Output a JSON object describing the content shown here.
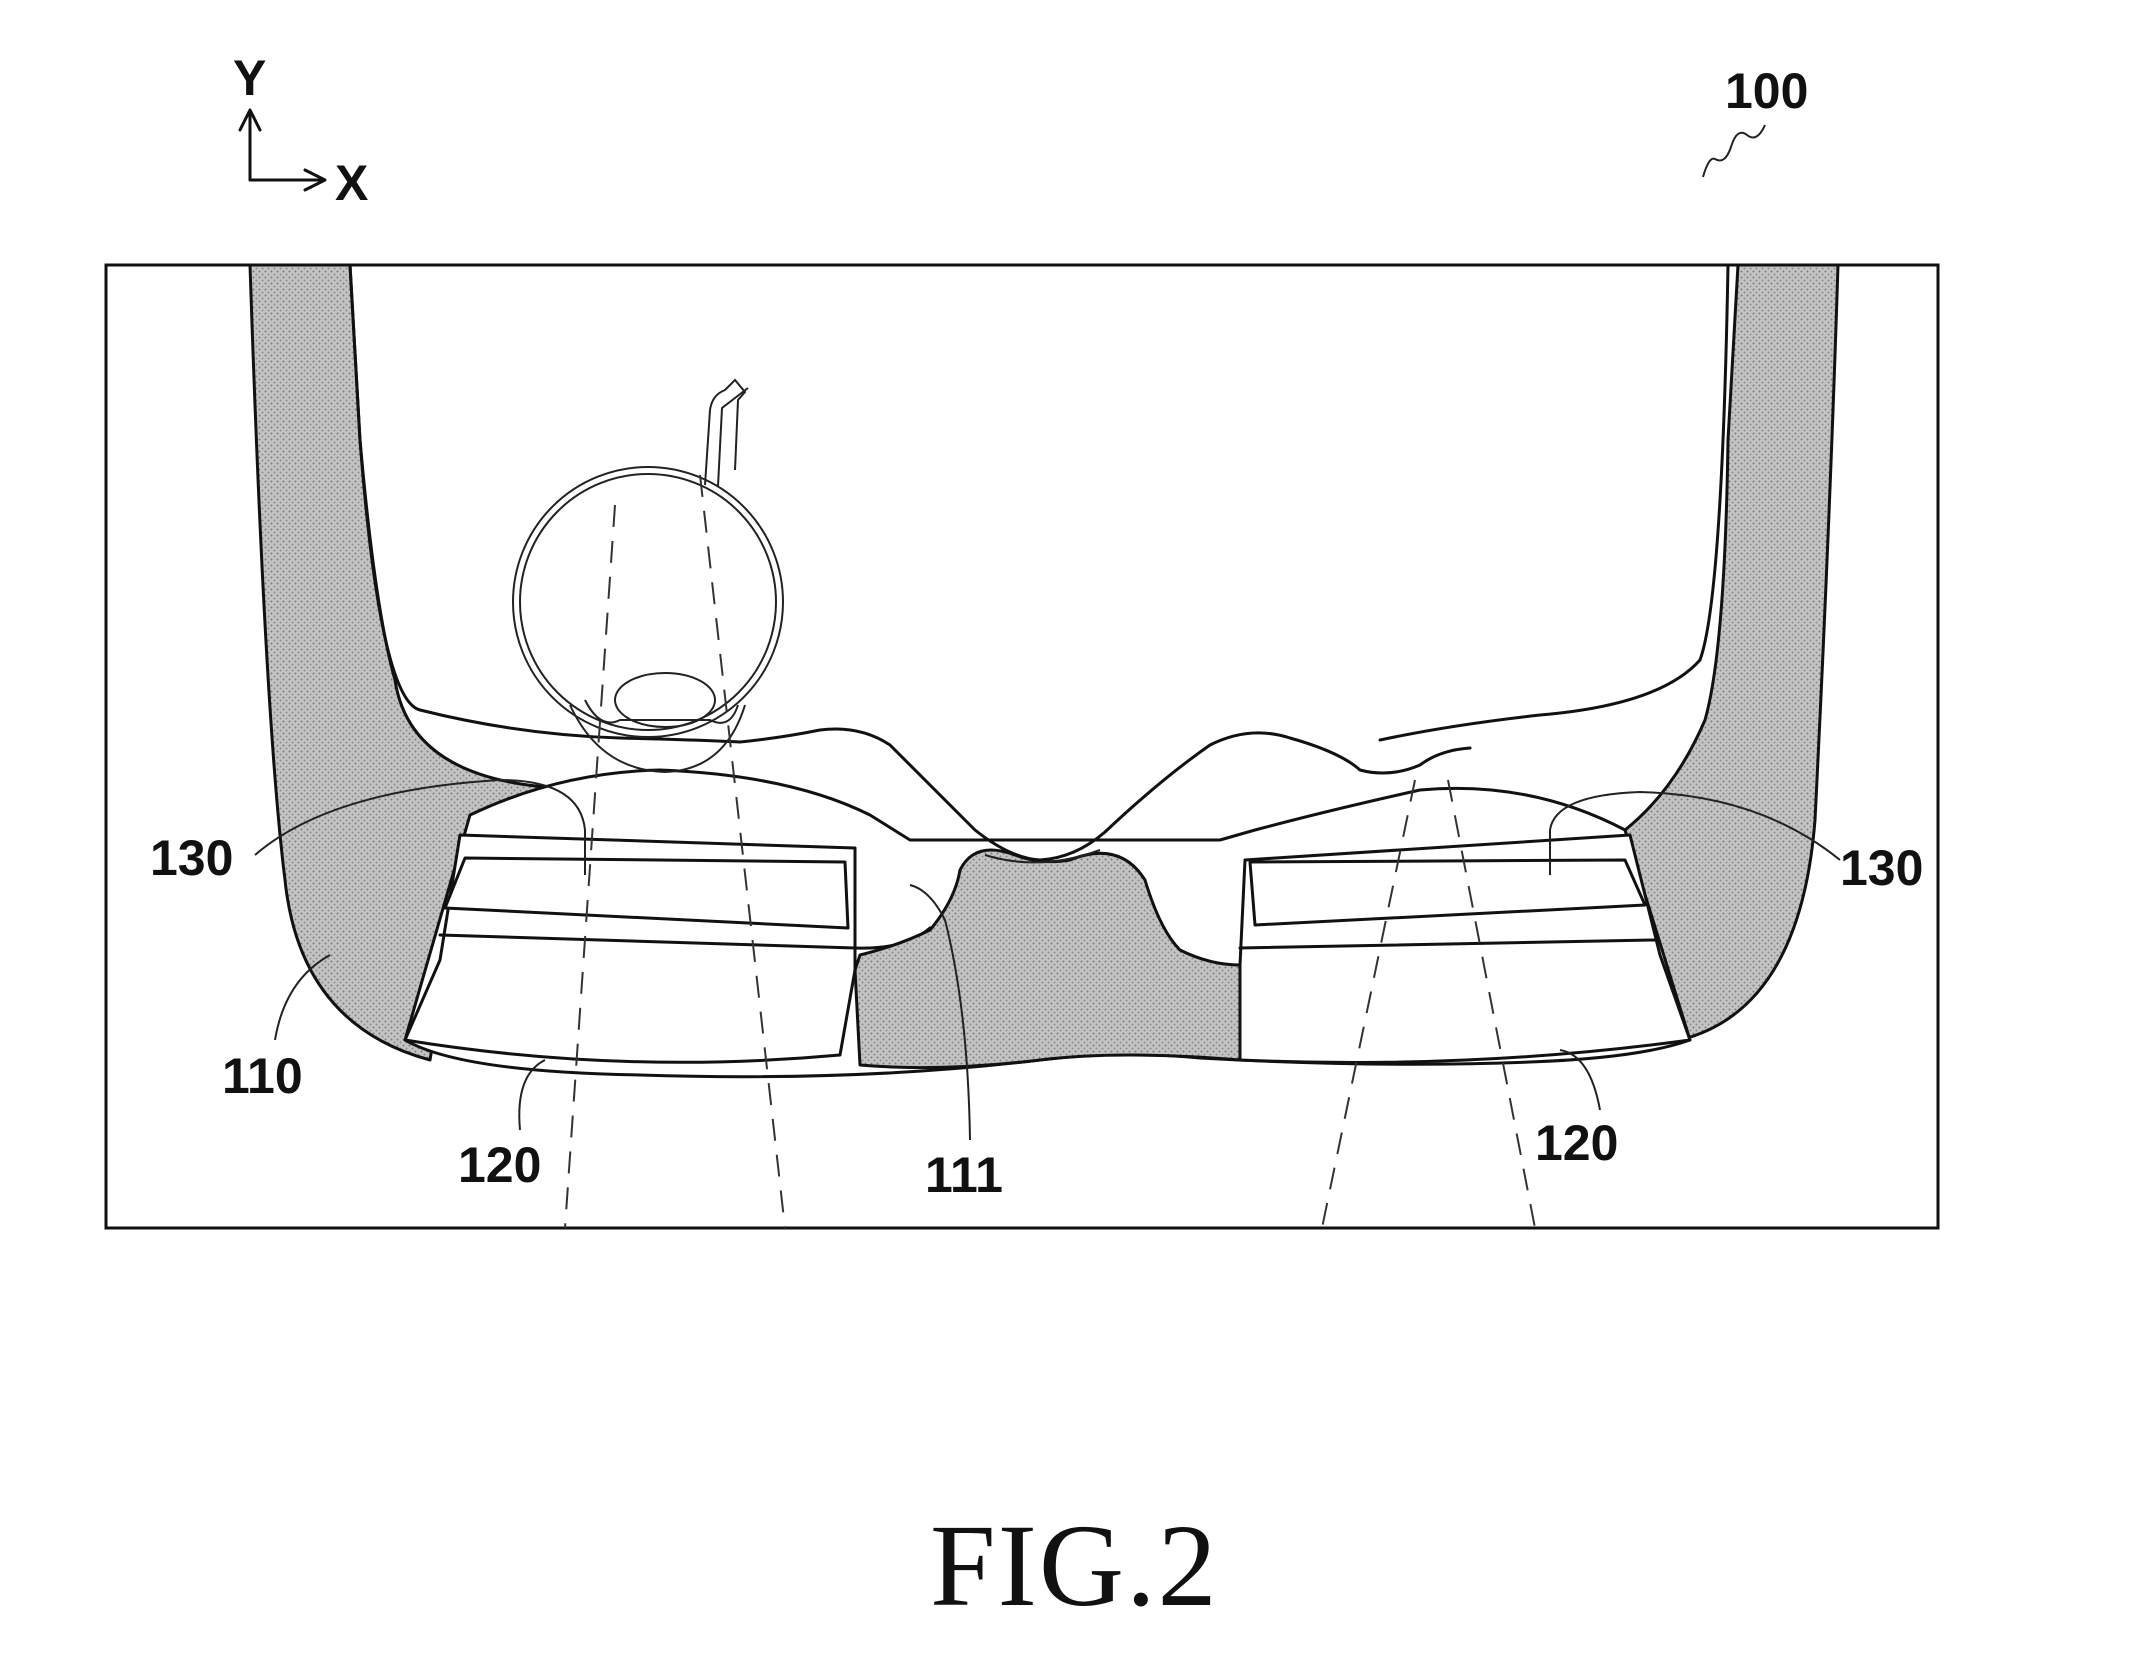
{
  "figure": {
    "caption": "FIG.2",
    "reference_numeral": "100"
  },
  "axes": {
    "y_label": "Y",
    "x_label": "X"
  },
  "labels": {
    "frame_left": "110",
    "nose_bridge": "111",
    "lens_left": "120",
    "lens_right": "120",
    "light_guide_left": "130",
    "light_guide_right": "130"
  },
  "colors": {
    "ink": "#111111",
    "shading": "#b9b9b9",
    "background": "#ffffff"
  }
}
